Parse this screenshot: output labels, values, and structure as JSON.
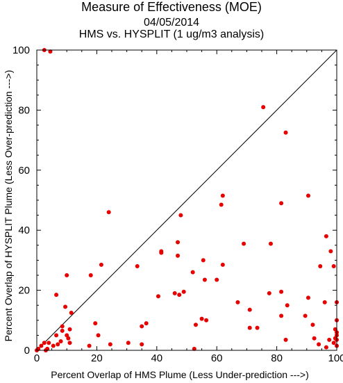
{
  "chart_data": {
    "type": "scatter",
    "title": "Measure of Effectiveness (MOE)",
    "date": "04/05/2014",
    "subtitle": "HMS vs. HYSPLIT  (1 ug/m3 analysis)",
    "xlabel": "Percent Overlap of HMS Plume (Less Under-prediction --->)",
    "ylabel": "Percent Overlap of HYSPLIT Plume (Less Over-prediction --->)",
    "xlim": [
      0,
      100
    ],
    "ylim": [
      0,
      100
    ],
    "xticks": [
      "0",
      "20",
      "40",
      "60",
      "80",
      "100"
    ],
    "yticks": [
      "0",
      "20",
      "40",
      "60",
      "80",
      "100"
    ],
    "marker_color": "#e60000",
    "diagonal_line": true,
    "points": [
      [
        2.5,
        100
      ],
      [
        4.5,
        99.5
      ],
      [
        75.5,
        81
      ],
      [
        83,
        72.5
      ],
      [
        90.5,
        51.5
      ],
      [
        62,
        51.5
      ],
      [
        61.5,
        48.5
      ],
      [
        81.5,
        49
      ],
      [
        24,
        46
      ],
      [
        48,
        45
      ],
      [
        96.5,
        38
      ],
      [
        47,
        36
      ],
      [
        69,
        35.5
      ],
      [
        78,
        35.5
      ],
      [
        98,
        33
      ],
      [
        41.5,
        33
      ],
      [
        41.5,
        32.5
      ],
      [
        47,
        31.5
      ],
      [
        55.5,
        30
      ],
      [
        62,
        28.5
      ],
      [
        33.5,
        28
      ],
      [
        94.5,
        28
      ],
      [
        99,
        28
      ],
      [
        21.5,
        28.5
      ],
      [
        52,
        26
      ],
      [
        10,
        25
      ],
      [
        18,
        25
      ],
      [
        56,
        23.5
      ],
      [
        60,
        23.5
      ],
      [
        49,
        19.5
      ],
      [
        46,
        19
      ],
      [
        47.5,
        18.5
      ],
      [
        40.5,
        18
      ],
      [
        77.5,
        19
      ],
      [
        81.5,
        19.5
      ],
      [
        6.5,
        18.5
      ],
      [
        96,
        16
      ],
      [
        100,
        16
      ],
      [
        90.5,
        17.5
      ],
      [
        67,
        16
      ],
      [
        83.5,
        15
      ],
      [
        9.5,
        14.5
      ],
      [
        71,
        13.5
      ],
      [
        11.5,
        12.5
      ],
      [
        81.5,
        11.5
      ],
      [
        89.5,
        11.5
      ],
      [
        55,
        10.5
      ],
      [
        100,
        10
      ],
      [
        19.5,
        9
      ],
      [
        36.5,
        9
      ],
      [
        56.5,
        10
      ],
      [
        35,
        8
      ],
      [
        53,
        8.5
      ],
      [
        8.5,
        8
      ],
      [
        11,
        7
      ],
      [
        71,
        7.5
      ],
      [
        73.5,
        7.5
      ],
      [
        92,
        8.5
      ],
      [
        99.5,
        7
      ],
      [
        100,
        6
      ],
      [
        8.5,
        6.5
      ],
      [
        20.5,
        5
      ],
      [
        6.5,
        5
      ],
      [
        10,
        5
      ],
      [
        100,
        5
      ],
      [
        99.5,
        4
      ],
      [
        92.5,
        4
      ],
      [
        10.5,
        4
      ],
      [
        97.5,
        3.5
      ],
      [
        83,
        3.5
      ],
      [
        100,
        3.5
      ],
      [
        8,
        3
      ],
      [
        4,
        2.5
      ],
      [
        2.5,
        2.5
      ],
      [
        24.5,
        2
      ],
      [
        99,
        2.5
      ],
      [
        11,
        2.5
      ],
      [
        30.5,
        2.5
      ],
      [
        7,
        2
      ],
      [
        94,
        2
      ],
      [
        35,
        2
      ],
      [
        17.5,
        1.5
      ],
      [
        100,
        1.5
      ],
      [
        96.5,
        1
      ],
      [
        5.5,
        1.5
      ],
      [
        1.5,
        1.5
      ],
      [
        52.5,
        0.5
      ],
      [
        3.5,
        0.5
      ],
      [
        0.5,
        0.5
      ],
      [
        0,
        0
      ],
      [
        3,
        0
      ]
    ]
  }
}
